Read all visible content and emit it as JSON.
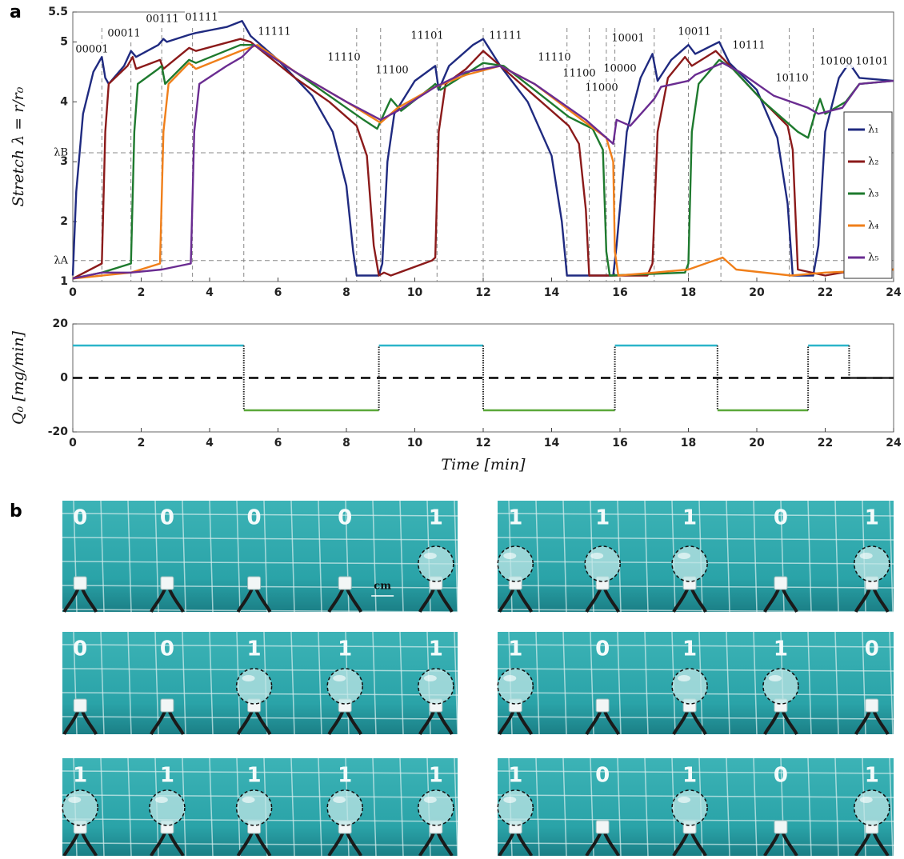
{
  "panel_labels": [
    "a",
    "b"
  ],
  "chart_data": [
    {
      "type": "line",
      "ylabel": "Stretch   λ = r/r₀",
      "xlim": [
        0,
        24
      ],
      "xticks": [
        0,
        2,
        4,
        6,
        8,
        10,
        12,
        14,
        16,
        18,
        20,
        22,
        24
      ],
      "ylim": [
        1,
        5.5
      ],
      "yticks": [
        1,
        {
          "value": 1.35,
          "label": "λA"
        },
        2,
        {
          "value": 3.15,
          "label": "λB"
        },
        3,
        4,
        5,
        5.5
      ],
      "vlines": [
        0.85,
        1.7,
        2.6,
        3.5,
        5.0,
        8.3,
        9.0,
        10.65,
        12.0,
        14.45,
        15.1,
        15.6,
        15.85,
        17.0,
        18.0,
        18.95,
        20.95,
        21.65
      ],
      "legend": "right",
      "annotations": [
        "00001",
        "00011",
        "00111",
        "01111",
        "11111",
        "11110",
        "11100",
        "11101",
        "11111",
        "11110",
        "11100",
        "11000",
        "10000",
        "10001",
        "10011",
        "10111",
        "10110",
        "10100",
        "10101"
      ],
      "series": [
        {
          "name": "λ₁",
          "color": "#1f2a80",
          "x": [
            0,
            0.1,
            0.3,
            0.6,
            0.85,
            0.95,
            1.05,
            1.5,
            1.7,
            1.85,
            2.5,
            2.65,
            2.75,
            3.4,
            3.6,
            4.5,
            4.95,
            5.2,
            6,
            7,
            7.6,
            8.0,
            8.2,
            8.3,
            8.95,
            9.05,
            9.2,
            9.4,
            10.0,
            10.6,
            10.7,
            11.0,
            11.7,
            12.0,
            12.5,
            13.3,
            14.0,
            14.3,
            14.45,
            15.8,
            15.9,
            16.2,
            16.6,
            16.95,
            17.1,
            17.5,
            18.0,
            18.2,
            18.9,
            19.2,
            20.0,
            20.6,
            20.9,
            21.05,
            21.65,
            21.8,
            22.0,
            22.4,
            22.7,
            23.0,
            24
          ],
          "values": [
            1.1,
            2.5,
            3.8,
            4.5,
            4.75,
            4.4,
            4.3,
            4.6,
            4.85,
            4.75,
            4.95,
            5.05,
            5.0,
            5.12,
            5.15,
            5.25,
            5.35,
            5.1,
            4.7,
            4.1,
            3.5,
            2.6,
            1.5,
            1.1,
            1.1,
            1.3,
            3.0,
            3.8,
            4.35,
            4.6,
            4.2,
            4.6,
            4.95,
            5.05,
            4.6,
            4.0,
            3.1,
            2.0,
            1.1,
            1.1,
            1.6,
            3.5,
            4.4,
            4.8,
            4.35,
            4.7,
            4.95,
            4.8,
            5.0,
            4.65,
            4.2,
            3.4,
            2.3,
            1.1,
            1.1,
            1.6,
            3.5,
            4.4,
            4.65,
            4.4,
            4.35
          ]
        },
        {
          "name": "λ₂",
          "color": "#8b1a1a",
          "x": [
            0,
            0.85,
            0.95,
            1.05,
            1.6,
            1.75,
            1.85,
            2.55,
            2.65,
            3.4,
            3.6,
            4.9,
            5.2,
            6.5,
            7.5,
            8.3,
            8.6,
            8.8,
            8.95,
            9.1,
            9.3,
            10.5,
            10.6,
            10.7,
            10.9,
            11.5,
            12.0,
            12.5,
            13.5,
            14.5,
            14.8,
            15.0,
            15.1,
            16.8,
            16.95,
            17.1,
            17.4,
            17.9,
            18.1,
            18.8,
            19.3,
            20.2,
            20.9,
            21.05,
            21.2,
            22.0,
            23,
            24
          ],
          "values": [
            1.05,
            1.3,
            3.5,
            4.3,
            4.6,
            4.75,
            4.55,
            4.7,
            4.55,
            4.9,
            4.85,
            5.05,
            5.0,
            4.4,
            4.0,
            3.6,
            3.1,
            1.6,
            1.1,
            1.15,
            1.1,
            1.35,
            1.4,
            3.5,
            4.3,
            4.55,
            4.85,
            4.6,
            4.1,
            3.6,
            3.3,
            2.2,
            1.1,
            1.1,
            1.3,
            3.5,
            4.4,
            4.75,
            4.6,
            4.85,
            4.55,
            4.0,
            3.6,
            3.2,
            1.2,
            1.1,
            1.2,
            1.2
          ]
        },
        {
          "name": "λ₃",
          "color": "#1e7a2e",
          "x": [
            0,
            0.85,
            1.7,
            1.8,
            1.9,
            2.5,
            2.6,
            2.7,
            3.4,
            3.6,
            4.9,
            5.3,
            6.5,
            7.5,
            8.5,
            8.9,
            9.1,
            9.3,
            9.6,
            10.5,
            10.6,
            10.75,
            12.0,
            12.6,
            13.5,
            14.5,
            15.2,
            15.5,
            15.6,
            15.7,
            17.9,
            18.0,
            18.1,
            18.3,
            18.9,
            19.3,
            20.2,
            21.2,
            21.5,
            21.7,
            21.85,
            22.0,
            22.6,
            23.0,
            24
          ],
          "values": [
            1.05,
            1.15,
            1.3,
            3.5,
            4.3,
            4.55,
            4.6,
            4.3,
            4.7,
            4.65,
            4.95,
            4.95,
            4.5,
            4.1,
            3.7,
            3.55,
            3.8,
            4.05,
            3.85,
            4.25,
            4.3,
            4.2,
            4.65,
            4.6,
            4.2,
            3.75,
            3.55,
            3.2,
            1.5,
            1.1,
            1.15,
            1.3,
            3.5,
            4.3,
            4.7,
            4.55,
            4.0,
            3.5,
            3.4,
            3.8,
            4.05,
            3.8,
            4.0,
            4.3,
            4.35
          ]
        },
        {
          "name": "λ₄",
          "color": "#f07f1a",
          "x": [
            0,
            1.7,
            2.55,
            2.65,
            2.8,
            3.4,
            3.6,
            4.9,
            5.4,
            6.5,
            8,
            9.0,
            9.5,
            10.6,
            11.5,
            12.5,
            13.5,
            15.0,
            15.6,
            15.8,
            15.85,
            15.95,
            17.0,
            18.0,
            19.0,
            19.4,
            21.0,
            22.0,
            24
          ],
          "values": [
            1.05,
            1.15,
            1.3,
            3.5,
            4.3,
            4.65,
            4.55,
            4.85,
            4.95,
            4.5,
            4.0,
            3.65,
            3.9,
            4.25,
            4.45,
            4.6,
            4.3,
            3.65,
            3.4,
            3.0,
            1.5,
            1.1,
            1.15,
            1.2,
            1.4,
            1.2,
            1.1,
            1.15,
            1.2
          ]
        },
        {
          "name": "λ₅",
          "color": "#6a2c91",
          "x": [
            0,
            0.85,
            1.7,
            2.6,
            3.45,
            3.55,
            3.7,
            4.5,
            4.95,
            5.3,
            6.5,
            8,
            9.0,
            9.5,
            10.6,
            11.5,
            12.5,
            13.5,
            15.0,
            15.8,
            15.9,
            16.3,
            17.0,
            17.2,
            18.0,
            18.2,
            19.0,
            19.5,
            20.5,
            21.5,
            21.8,
            22.5,
            23.0,
            24
          ],
          "values": [
            1.05,
            1.15,
            1.15,
            1.2,
            1.3,
            3.5,
            4.3,
            4.6,
            4.75,
            4.95,
            4.5,
            4.0,
            3.7,
            3.85,
            4.25,
            4.5,
            4.6,
            4.3,
            3.7,
            3.3,
            3.7,
            3.6,
            4.05,
            4.25,
            4.35,
            4.45,
            4.65,
            4.5,
            4.1,
            3.9,
            3.8,
            3.9,
            4.3,
            4.35
          ]
        }
      ]
    },
    {
      "type": "step",
      "ylabel": "Q₀   [mg/min]",
      "xlabel": "Time   [min]",
      "xlim": [
        0,
        24
      ],
      "xticks": [
        0,
        2,
        4,
        6,
        8,
        10,
        12,
        14,
        16,
        18,
        20,
        22,
        24
      ],
      "ylim": [
        -20,
        20
      ],
      "yticks": [
        -20,
        0,
        20
      ],
      "hlines": [
        0
      ],
      "color_positive": "#2bb5c9",
      "color_negative": "#5ba83a",
      "color_transition": "#222222",
      "x": [
        0,
        5,
        5,
        8.95,
        8.95,
        12,
        12,
        15.85,
        15.85,
        18.85,
        18.85,
        21.5,
        21.5,
        22.7,
        22.7,
        24
      ],
      "values": [
        12,
        12,
        -12,
        -12,
        12,
        12,
        -12,
        -12,
        12,
        12,
        -12,
        -12,
        12,
        12,
        0,
        0
      ]
    }
  ],
  "scale_label": "cm",
  "photos": [
    {
      "digits": [
        "0",
        "0",
        "0",
        "0",
        "1"
      ]
    },
    {
      "digits": [
        "1",
        "1",
        "1",
        "0",
        "1"
      ]
    },
    {
      "digits": [
        "0",
        "0",
        "1",
        "1",
        "1"
      ]
    },
    {
      "digits": [
        "1",
        "0",
        "1",
        "1",
        "0"
      ]
    },
    {
      "digits": [
        "1",
        "1",
        "1",
        "1",
        "1"
      ]
    },
    {
      "digits": [
        "1",
        "0",
        "1",
        "0",
        "1"
      ]
    }
  ]
}
